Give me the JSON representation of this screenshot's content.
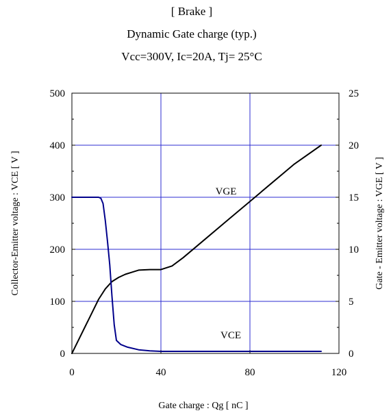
{
  "chart_data": {
    "type": "line",
    "title_lines": [
      "[ Brake ]",
      "Dynamic Gate charge  (typ.)",
      "Vcc=300V,  Ic=20A, Tj= 25°C"
    ],
    "xlabel": "Gate charge  :  Qg  [ nC ]",
    "ylabel_left": "Collector-Emitter voltage : VCE [ V ]",
    "ylabel_right": "Gate - Emitter voltage  :  VGE   [ V ]",
    "xlim": [
      0,
      120
    ],
    "ylim_left": [
      0,
      500
    ],
    "ylim_right": [
      0,
      25
    ],
    "x_ticks": [
      "0",
      "40",
      "80",
      "120"
    ],
    "y_ticks_left": [
      "0",
      "100",
      "200",
      "300",
      "400",
      "500"
    ],
    "y_ticks_right": [
      "0",
      "5",
      "10",
      "15",
      "20",
      "25"
    ],
    "grid": true,
    "series": [
      {
        "name": "VGE",
        "axis": "right",
        "color": "#000000",
        "x": [
          0,
          3,
          6,
          9,
          12,
          15,
          18,
          21,
          24,
          27,
          30,
          35,
          40,
          45,
          50,
          60,
          70,
          80,
          90,
          100,
          112
        ],
        "y": [
          0,
          1.3,
          2.6,
          3.9,
          5.2,
          6.2,
          6.9,
          7.3,
          7.6,
          7.8,
          8.0,
          8.05,
          8.05,
          8.4,
          9.2,
          11.0,
          12.8,
          14.6,
          16.4,
          18.2,
          20.0
        ]
      },
      {
        "name": "VCE",
        "axis": "left",
        "color": "#00008b",
        "x": [
          0,
          12,
          13,
          14,
          15,
          16,
          17,
          18,
          19,
          20,
          22,
          25,
          30,
          35,
          40,
          60,
          80,
          100,
          112
        ],
        "y": [
          300,
          300,
          298,
          288,
          255,
          215,
          170,
          110,
          55,
          25,
          17,
          12,
          7,
          5,
          4,
          4,
          4,
          4,
          4
        ]
      }
    ],
    "annotations": [
      {
        "text": "VGE",
        "series": "VGE"
      },
      {
        "text": "VCE",
        "series": "VCE"
      }
    ]
  }
}
